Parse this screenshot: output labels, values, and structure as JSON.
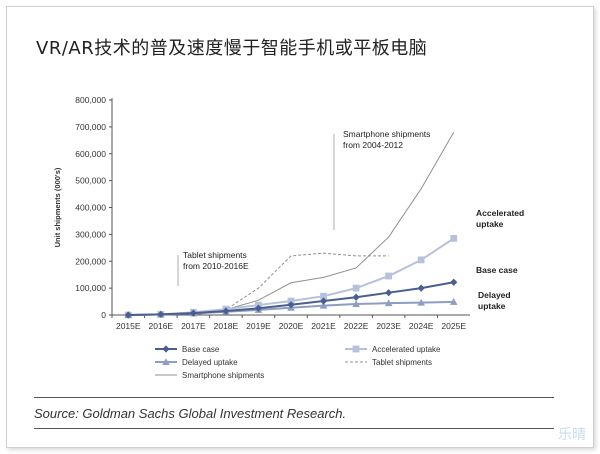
{
  "page": {
    "title": "VR/AR技术的普及速度慢于智能手机或平板电脑",
    "source": "Source: Goldman Sachs Global Investment Research.",
    "watermark": "乐晴"
  },
  "chart_data": {
    "type": "line",
    "ylabel": "Unit shipments (000's)",
    "ylim": [
      0,
      800000
    ],
    "yticks": [
      0,
      100000,
      200000,
      300000,
      400000,
      500000,
      600000,
      700000,
      800000
    ],
    "ytick_labels": [
      "0",
      "100,000",
      "200,000",
      "300,000",
      "400,000",
      "500,000",
      "600,000",
      "700,000",
      "800,000"
    ],
    "x": [
      "2015E",
      "2016E",
      "2017E",
      "2018E",
      "2019E",
      "2020E",
      "2021E",
      "2022E",
      "2023E",
      "2024E",
      "2025E"
    ],
    "series": [
      {
        "name": "Base case",
        "color": "#4a5f8f",
        "marker": "diamond",
        "values": [
          0,
          2500,
          7000,
          15000,
          25000,
          38000,
          52000,
          66000,
          83000,
          100000,
          122000
        ]
      },
      {
        "name": "Accelerated uptake",
        "color": "#b8c1da",
        "marker": "square",
        "values": [
          0,
          2500,
          10000,
          22000,
          37000,
          52000,
          70000,
          100000,
          145000,
          205000,
          285000
        ]
      },
      {
        "name": "Delayed uptake",
        "color": "#8e9ec2",
        "marker": "triangle",
        "values": [
          0,
          2000,
          6000,
          12000,
          19000,
          27000,
          35000,
          41000,
          44000,
          46000,
          49000
        ]
      },
      {
        "name": "Smartphone shipments",
        "color": "#909090",
        "dash": "",
        "values": [
          null,
          null,
          0,
          20000,
          55000,
          120000,
          140000,
          175000,
          290000,
          470000,
          680000
        ]
      },
      {
        "name": "Tablet shipments",
        "color": "#909090",
        "dash": "3,2",
        "values": [
          null,
          null,
          0,
          20000,
          100000,
          220000,
          230000,
          220000,
          220000,
          null,
          null
        ]
      }
    ],
    "annotations": [
      {
        "id": "smartphone",
        "lines": [
          "Smartphone shipments",
          "from 2004-2012"
        ]
      },
      {
        "id": "tablet",
        "lines": [
          "Tablet shipments",
          "from 2010-2016E"
        ]
      },
      {
        "id": "accelerated",
        "lines": [
          "Accelerated",
          "uptake"
        ]
      },
      {
        "id": "base",
        "lines": [
          "Base case"
        ]
      },
      {
        "id": "delayed",
        "lines": [
          "Delayed",
          "uptake"
        ]
      }
    ],
    "legend": [
      {
        "label": "Base case",
        "series": 0
      },
      {
        "label": "Accelerated uptake",
        "series": 1
      },
      {
        "label": "Delayed uptake",
        "series": 2
      },
      {
        "label": "Tablet shipments",
        "series": 4
      },
      {
        "label": "Smartphone shipments",
        "series": 3
      }
    ]
  }
}
